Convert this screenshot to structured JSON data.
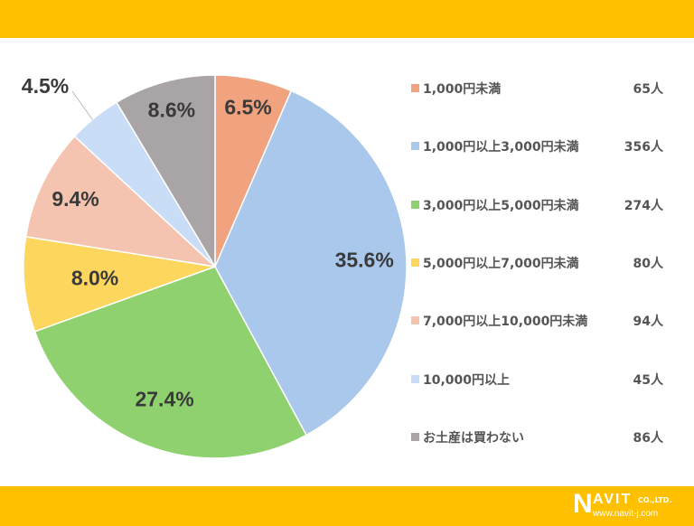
{
  "chart_data": {
    "type": "pie",
    "title": "",
    "start": "top",
    "direction": "clockwise",
    "unit": "人",
    "slices": [
      {
        "label": "1,000円未満",
        "count": 65,
        "count_label": "65人",
        "percent_label": "6.5%",
        "color": "#F1A27E"
      },
      {
        "label": "1,000円以上3,000円未満",
        "count": 356,
        "count_label": "356人",
        "percent_label": "35.6%",
        "color": "#A9C8EC"
      },
      {
        "label": "3,000円以上5,000円未満",
        "count": 274,
        "count_label": "274人",
        "percent_label": "27.4%",
        "color": "#8FD16F"
      },
      {
        "label": "5,000円以上7,000円未満",
        "count": 80,
        "count_label": "80人",
        "percent_label": "8.0%",
        "color": "#FDD65E"
      },
      {
        "label": "7,000円以上10,000円未満",
        "count": 94,
        "count_label": "94人",
        "percent_label": "9.4%",
        "color": "#F5C4B0"
      },
      {
        "label": "10,000円以上",
        "count": 45,
        "count_label": "45人",
        "percent_label": "4.5%",
        "color": "#C9DDF7"
      },
      {
        "label": "お土産は買わない",
        "count": 86,
        "count_label": "86人",
        "percent_label": "8.6%",
        "color": "#A9A5A7"
      }
    ],
    "legend_position": "right"
  },
  "brand": {
    "name": "NAVIT",
    "company_suffix": "CO.,LTD.",
    "url": "www.navit-j.com",
    "band_color": "#FFC000"
  }
}
